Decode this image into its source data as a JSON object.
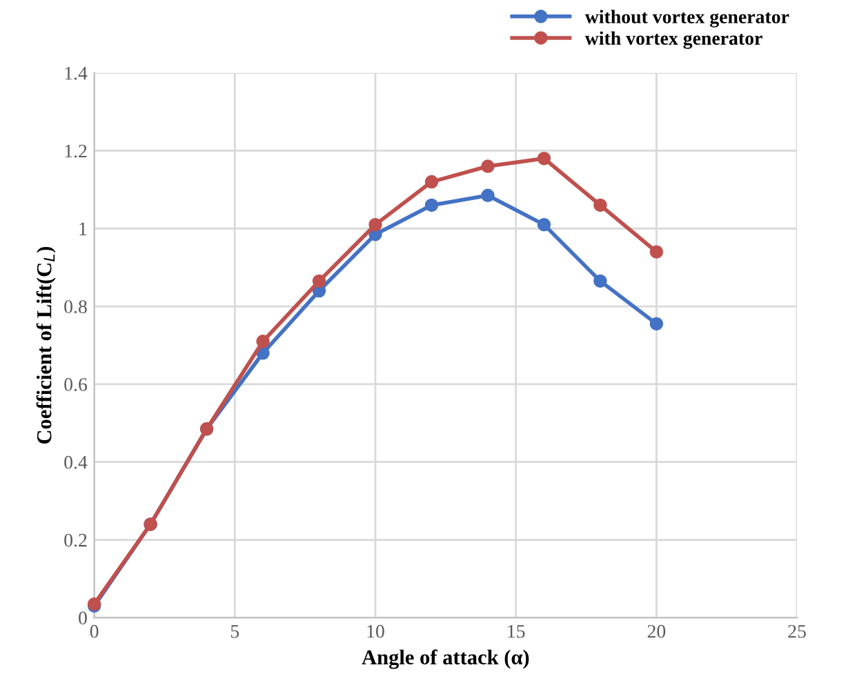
{
  "chart_data": {
    "type": "line",
    "xlabel": "Angle of attack (α)",
    "ylabel": "Coefficient of Lift(C$_{L}$)",
    "x": [
      0,
      2,
      4,
      6,
      8,
      10,
      12,
      14,
      16,
      18,
      20
    ],
    "series": [
      {
        "name": "without vortex generator",
        "color": "#4472c4",
        "values": [
          0.03,
          0.24,
          0.485,
          0.68,
          0.84,
          0.985,
          1.06,
          1.085,
          1.01,
          0.865,
          0.755
        ]
      },
      {
        "name": "with vortex generator",
        "color": "#c0504d",
        "values": [
          0.035,
          0.24,
          0.485,
          0.71,
          0.865,
          1.01,
          1.12,
          1.16,
          1.18,
          1.06,
          0.94
        ]
      }
    ],
    "xlim": [
      0,
      25
    ],
    "xticks": [
      0,
      5,
      10,
      15,
      20,
      25
    ],
    "ylim": [
      0,
      1.4
    ],
    "yticks": [
      0,
      0.2,
      0.4,
      0.6,
      0.8,
      1,
      1.2,
      1.4
    ],
    "grid": true,
    "legend": "top right",
    "marker": "circle",
    "line_style": "solid"
  }
}
